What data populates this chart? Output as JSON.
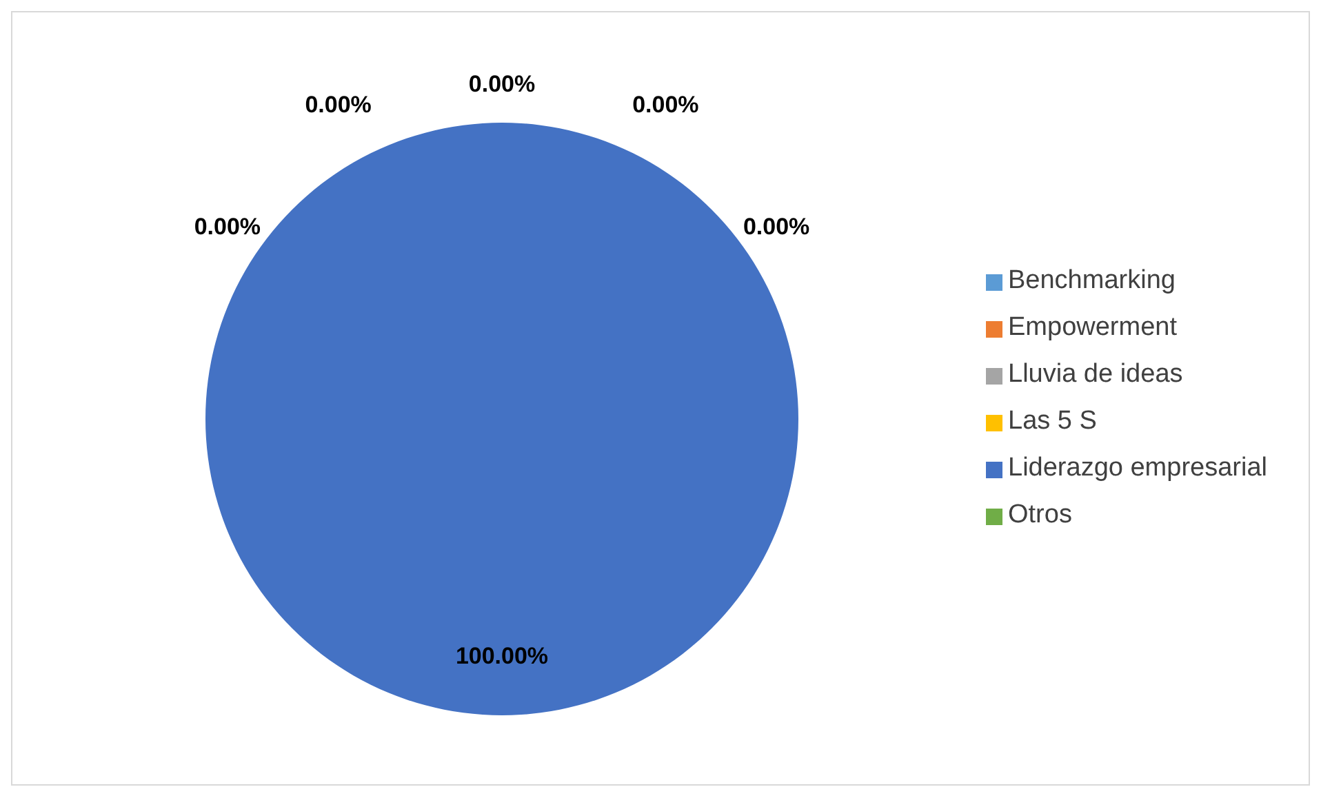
{
  "chart_data": {
    "type": "pie",
    "categories": [
      "Benchmarking",
      "Empowerment",
      "Lluvia de ideas",
      "Las 5 S",
      "Liderazgo empresarial",
      "Otros"
    ],
    "values": [
      0,
      0,
      0,
      0,
      100,
      0
    ],
    "colors": [
      "#5b9bd5",
      "#ed7d31",
      "#a5a5a5",
      "#ffc000",
      "#4472c4",
      "#70ad47"
    ],
    "value_labels": [
      "0.00%",
      "0.00%",
      "0.00%",
      "0.00%",
      "100.00%",
      "0.00%"
    ],
    "legend": "right"
  }
}
